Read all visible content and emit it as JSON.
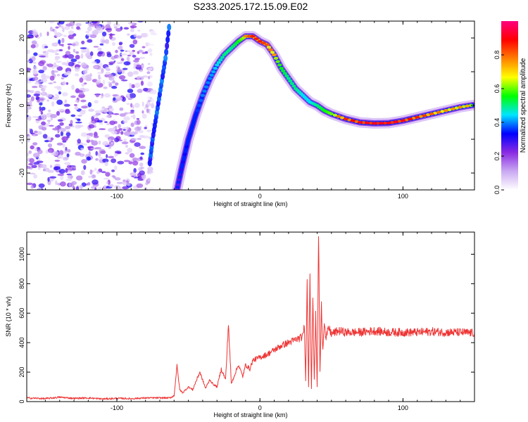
{
  "title": "S233.2025.172.15.09.E02",
  "chart_data": [
    {
      "type": "heatmap",
      "xlabel": "Height of straight line (km)",
      "ylabel": "Frequency (Hz)",
      "xlim": [
        -163,
        150
      ],
      "ylim": [
        -25,
        25
      ],
      "xticks": [
        -100,
        0,
        100
      ],
      "yticks": [
        20,
        10,
        0,
        -10,
        -20
      ],
      "x_unlabeled_minor_ticks": true,
      "grid": false,
      "colorbar": {
        "label": "Normalized spectral amplitude",
        "range": [
          0,
          1
        ],
        "ticks": [
          0.0,
          0.2,
          0.4,
          0.6,
          0.8
        ],
        "tick_labels": [
          "0.0",
          "0.2",
          "0.4",
          "0.6",
          "0.8"
        ],
        "colors": [
          "#ffffff",
          "#c9a8f2",
          "#8a2be2",
          "#0000ff",
          "#00e5ff",
          "#00ff00",
          "#ffff00",
          "#ff8000",
          "#ff0000",
          "#ff007f"
        ]
      },
      "noise_region_x": [
        -163,
        -73
      ],
      "ridge": {
        "x": [
          -58,
          -55,
          -50,
          -45,
          -40,
          -35,
          -30,
          -25,
          -20,
          -15,
          -10,
          -5,
          0,
          5,
          10,
          15,
          20,
          25,
          30,
          35,
          40,
          45,
          50,
          60,
          70,
          80,
          90,
          100,
          110,
          120,
          130,
          140,
          150
        ],
        "y": [
          -25,
          -19,
          -10,
          -3,
          3,
          8,
          12,
          15,
          17,
          19,
          20.5,
          20.5,
          19,
          18,
          15,
          11,
          8,
          5,
          3,
          1,
          0,
          -1.5,
          -2.5,
          -4,
          -5,
          -5.3,
          -5.2,
          -4.5,
          -3.5,
          -2.5,
          -1.5,
          -0.5,
          0.2
        ],
        "amplitude": [
          0.25,
          0.3,
          0.35,
          0.35,
          0.4,
          0.4,
          0.45,
          0.5,
          0.5,
          0.55,
          0.65,
          0.75,
          0.75,
          0.7,
          0.65,
          0.55,
          0.5,
          0.5,
          0.45,
          0.45,
          0.5,
          0.55,
          0.6,
          0.75,
          0.8,
          0.85,
          0.85,
          0.8,
          0.75,
          0.7,
          0.65,
          0.65,
          0.6
        ]
      },
      "left_edge_streak": {
        "x": [
          -77,
          -75,
          -72,
          -69,
          -66,
          -63
        ],
        "y": [
          -17,
          -10,
          -2,
          6,
          14,
          25
        ]
      }
    },
    {
      "type": "line",
      "xlabel": "Height of straight line (km)",
      "ylabel": "SNR (10 * v/v)",
      "xlim": [
        -163,
        150
      ],
      "ylim": [
        0,
        1150
      ],
      "xticks": [
        -100,
        0,
        100
      ],
      "yticks": [
        0,
        200,
        400,
        600,
        800,
        1000
      ],
      "x_unlabeled_minor_ticks": true,
      "grid": false,
      "color": "#ee3333",
      "series": [
        {
          "x": [
            -163,
            -150,
            -140,
            -130,
            -120,
            -110,
            -100,
            -90,
            -80,
            -70,
            -63,
            -60,
            -58,
            -56,
            -54,
            -50,
            -47,
            -45,
            -42,
            -38,
            -35,
            -33,
            -30,
            -27,
            -24,
            -22,
            -20,
            -17,
            -15,
            -12,
            -10,
            -7,
            -5,
            0,
            5,
            10,
            15,
            20,
            25,
            30,
            31,
            32,
            33,
            34,
            35,
            36,
            37,
            38,
            39,
            40,
            41,
            42,
            43,
            44,
            45,
            46,
            48,
            50,
            55,
            60,
            70,
            80,
            90,
            100,
            110,
            120,
            130,
            140,
            150
          ],
          "y": [
            25,
            20,
            30,
            22,
            25,
            18,
            22,
            20,
            25,
            25,
            25,
            40,
            240,
            80,
            60,
            100,
            80,
            130,
            200,
            90,
            150,
            120,
            100,
            220,
            150,
            530,
            120,
            200,
            250,
            170,
            250,
            220,
            280,
            300,
            320,
            350,
            380,
            400,
            420,
            440,
            530,
            150,
            800,
            100,
            900,
            90,
            700,
            150,
            580,
            100,
            1150,
            200,
            650,
            350,
            560,
            420,
            500,
            460,
            480,
            470,
            470,
            480,
            470,
            470,
            470,
            475,
            470,
            470,
            465
          ]
        }
      ]
    }
  ]
}
